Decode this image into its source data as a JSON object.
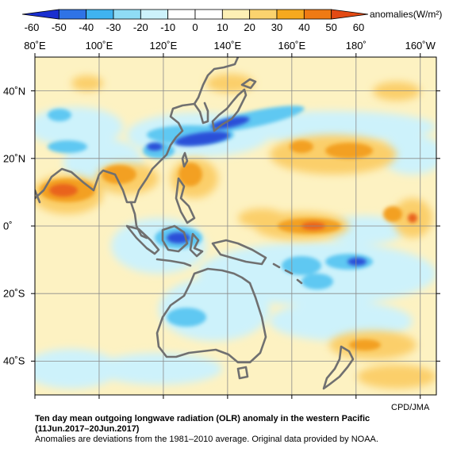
{
  "colorbar": {
    "unit_label": "anomalies(W/m²)",
    "ticks": [
      "-60",
      "-50",
      "-40",
      "-30",
      "-20",
      "-10",
      "0",
      "10",
      "20",
      "30",
      "40",
      "50",
      "60"
    ],
    "colors": [
      "#1a2fd0",
      "#2f73e6",
      "#3fb3f0",
      "#8fdcf5",
      "#cdf2fb",
      "#ffffff",
      "#ffffff",
      "#fdf0b5",
      "#fbd36e",
      "#f6a91f",
      "#ef7a14",
      "#e34a14"
    ]
  },
  "map": {
    "lon_labels": [
      "80˚E",
      "100˚E",
      "120˚E",
      "140˚E",
      "160˚E",
      "180˚",
      "160˚W"
    ],
    "lat_labels": [
      "40˚N",
      "20˚N",
      "0˚",
      "20˚S",
      "40˚S"
    ],
    "projection": "equirectangular",
    "lon_range": [
      "80˚E",
      "160˚W"
    ],
    "lat_range": [
      "50˚N",
      "50˚S"
    ],
    "grid": true,
    "credit": "CPD/JMA"
  },
  "caption": {
    "title_line1": "Ten day mean outgoing longwave radiation (OLR) anomaly in the western Pacific",
    "title_line2": "(11Jun.2017–20Jun.2017)",
    "note": "Anomalies are deviations from the 1981–2010 average. Original data provided by NOAA."
  }
}
